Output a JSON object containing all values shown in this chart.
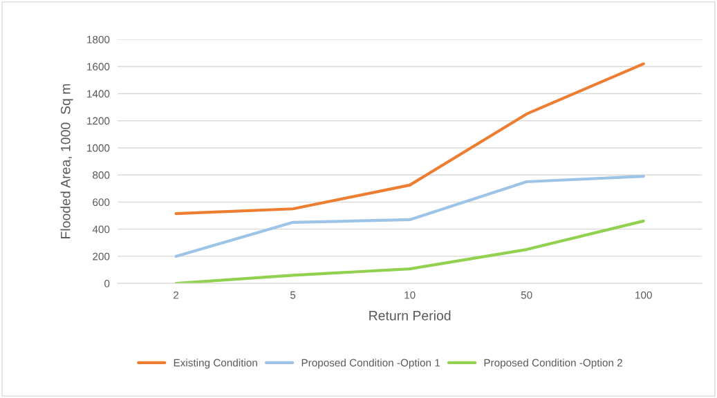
{
  "chart_data": {
    "type": "line",
    "xlabel": "Return Period",
    "ylabel": "Flooded Area, 1000  Sq m",
    "categories": [
      "2",
      "5",
      "10",
      "50",
      "100"
    ],
    "series": [
      {
        "name": "Existing Condition",
        "color": "#ed7d31",
        "values": [
          515,
          550,
          725,
          1250,
          1620
        ]
      },
      {
        "name": "Proposed Condition -Option 1",
        "color": "#9dc3e6",
        "values": [
          200,
          450,
          470,
          750,
          790
        ]
      },
      {
        "name": "Proposed Condition -Option 2",
        "color": "#92d050",
        "values": [
          0,
          60,
          107,
          250,
          460
        ]
      }
    ],
    "ylim": [
      0,
      1800
    ],
    "yticks": [
      0,
      200,
      400,
      600,
      800,
      1000,
      1200,
      1400,
      1600,
      1800
    ],
    "grid": "y",
    "legend": "bottom",
    "marker": "none",
    "line_style": "solid"
  }
}
